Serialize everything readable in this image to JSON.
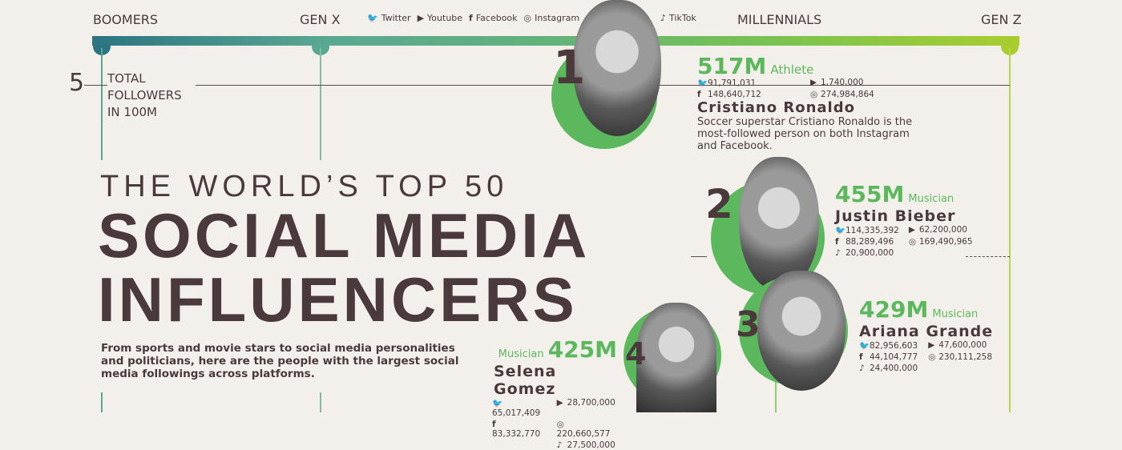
{
  "timeline": {
    "labels": [
      "BOOMERS",
      "GEN X",
      "MILLENNIALS",
      "GEN Z"
    ],
    "colors": [
      "#2b7482",
      "#5aa792",
      "#7cc34e",
      "#a9cd2f"
    ]
  },
  "legend": [
    {
      "icon": "twitter-icon",
      "label": "Twitter"
    },
    {
      "icon": "youtube-icon",
      "label": "Youtube"
    },
    {
      "icon": "facebook-icon",
      "label": "Facebook"
    },
    {
      "icon": "instagram-icon",
      "label": "Instagram"
    },
    {
      "icon": "tiktok-icon",
      "label": "TikTok"
    }
  ],
  "axis": {
    "tick": "5",
    "label": "TOTAL FOLLOWERS IN 100M"
  },
  "title": {
    "line1": "THE WORLD’S TOP 50",
    "line2": "SOCIAL MEDIA",
    "line3": "INFLUENCERS"
  },
  "description": "From sports and movie stars to social media personalities and politicians, here are the people with the largest social media followings across platforms.",
  "accent": "#5cb85c",
  "influencers": [
    {
      "rank": "1",
      "total": "517M",
      "category": "Athlete",
      "name": "Cristiano Ronaldo",
      "twitter": "91,791,031",
      "youtube": "1,740,000",
      "facebook": "148,640,712",
      "instagram": "274,984,864",
      "note": "Soccer superstar Cristiano Ronaldo is the most-followed person on both Instagram and Facebook."
    },
    {
      "rank": "2",
      "total": "455M",
      "category": "Musician",
      "name": "Justin Bieber",
      "twitter": "114,335,392",
      "youtube": "62,200,000",
      "facebook": "88,289,496",
      "instagram": "169,490,965",
      "tiktok": "20,900,000"
    },
    {
      "rank": "3",
      "total": "429M",
      "category": "Musician",
      "name": "Ariana Grande",
      "twitter": "82,956,603",
      "youtube": "47,600,000",
      "facebook": "44,104,777",
      "instagram": "230,111,258",
      "tiktok": "24,400,000"
    },
    {
      "rank": "4",
      "total": "425M",
      "category": "Musician",
      "name": "Selena Gomez",
      "twitter": "65,017,409",
      "youtube": "28,700,000",
      "facebook": "83,332,770",
      "instagram": "220,660,577",
      "tiktok": "27,500,000"
    }
  ]
}
